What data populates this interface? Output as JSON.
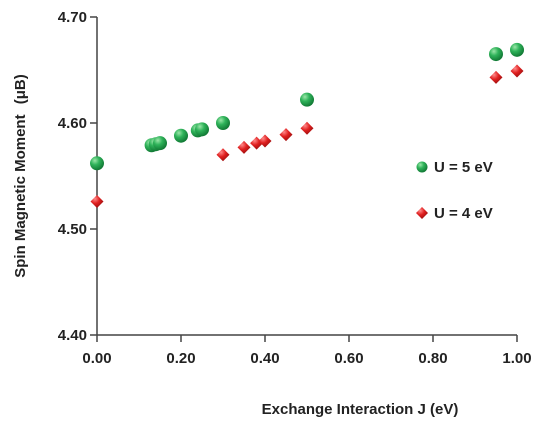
{
  "chart_data": {
    "type": "scatter",
    "xlabel": "Exchange Interaction J (eV)",
    "ylabel": "Spin Magnetic Moment",
    "ylabel_unit": "(μB)",
    "xlim": [
      0,
      1.0
    ],
    "ylim": [
      4.4,
      4.7
    ],
    "x_ticks": [
      "0.00",
      "0.20",
      "0.40",
      "0.60",
      "0.80",
      "1.00"
    ],
    "y_ticks": [
      "4.40",
      "4.50",
      "4.60",
      "4.70"
    ],
    "grid": false,
    "legend_placement": "right",
    "series": [
      {
        "name": "U = 5 eV",
        "marker": "circle",
        "color": "#1f9a4a",
        "points": [
          {
            "x": 0.0,
            "y": 4.562
          },
          {
            "x": 0.13,
            "y": 4.579
          },
          {
            "x": 0.14,
            "y": 4.58
          },
          {
            "x": 0.15,
            "y": 4.581
          },
          {
            "x": 0.2,
            "y": 4.588
          },
          {
            "x": 0.24,
            "y": 4.593
          },
          {
            "x": 0.25,
            "y": 4.594
          },
          {
            "x": 0.3,
            "y": 4.6
          },
          {
            "x": 0.5,
            "y": 4.622
          },
          {
            "x": 0.95,
            "y": 4.665
          },
          {
            "x": 1.0,
            "y": 4.669
          }
        ]
      },
      {
        "name": "U = 4 eV",
        "marker": "diamond",
        "color": "#e02020",
        "points": [
          {
            "x": 0.0,
            "y": 4.526
          },
          {
            "x": 0.3,
            "y": 4.57
          },
          {
            "x": 0.35,
            "y": 4.577
          },
          {
            "x": 0.38,
            "y": 4.581
          },
          {
            "x": 0.4,
            "y": 4.583
          },
          {
            "x": 0.45,
            "y": 4.589
          },
          {
            "x": 0.5,
            "y": 4.595
          },
          {
            "x": 0.95,
            "y": 4.643
          },
          {
            "x": 1.0,
            "y": 4.649
          }
        ]
      }
    ]
  }
}
